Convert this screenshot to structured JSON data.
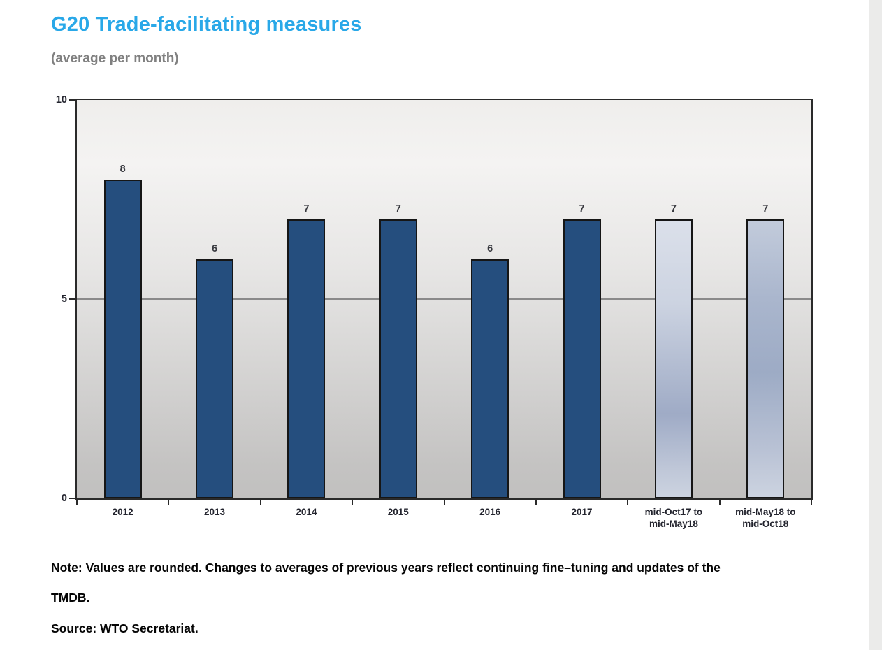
{
  "header": {
    "title": "G20 Trade-facilitating measures",
    "subtitle": "(average per month)"
  },
  "chart_data": {
    "type": "bar",
    "title": "G20 Trade-facilitating measures",
    "subtitle": "(average per month)",
    "categories": [
      "2012",
      "2013",
      "2014",
      "2015",
      "2016",
      "2017",
      "mid-Oct17 to\nmid-May18",
      "mid-May18 to\nmid-Oct18"
    ],
    "values": [
      8,
      6,
      7,
      7,
      6,
      7,
      7,
      7
    ],
    "bar_styles": [
      "dark",
      "dark",
      "dark",
      "dark",
      "dark",
      "dark",
      "light1",
      "light2"
    ],
    "xlabel": "",
    "ylabel": "",
    "ylim": [
      0,
      10
    ],
    "yticks": [
      10,
      5,
      0
    ],
    "gridlines": [
      5
    ],
    "legend": "none",
    "grid": "single horizontal gridline at 5",
    "colors": {
      "bar_dark": "#254E7E",
      "bar_light_top": "#DBE0EA",
      "bar_light_bottom": "#9FABC6",
      "bar_border": "#161616",
      "plot_bg_top": "#EFEEEC",
      "plot_bg_bottom": "#C1C0BF",
      "gridline": "#8A8A8A",
      "title_accent": "#29A8E8",
      "subtitle_gray": "#808080"
    }
  },
  "footer": {
    "note_lines": [
      "Note: Values are rounded. Changes to averages of previous years reflect continuing fine–tuning and updates of the",
      "TMDB."
    ],
    "source": "Source: WTO Secretariat."
  }
}
